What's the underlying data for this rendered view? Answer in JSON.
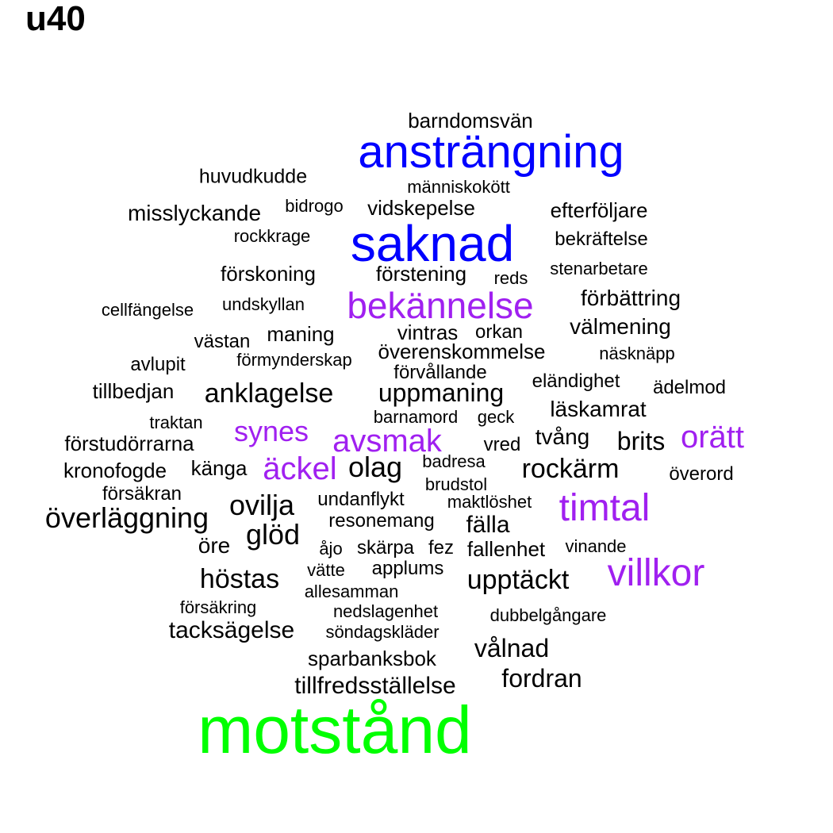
{
  "title": "u40",
  "colors": {
    "tier1": "#00ff00",
    "tier2": "#0000ff",
    "tier3": "#a020f0",
    "tier4": "#000000"
  },
  "words": [
    {
      "text": "motstånd",
      "tier": "tier1"
    },
    {
      "text": "ansträngning",
      "tier": "tier2"
    },
    {
      "text": "saknad",
      "tier": "tier2"
    },
    {
      "text": "bekännelse",
      "tier": "tier3"
    },
    {
      "text": "timtal",
      "tier": "tier3"
    },
    {
      "text": "villkor",
      "tier": "tier3"
    },
    {
      "text": "avsmak",
      "tier": "tier3"
    },
    {
      "text": "orätt",
      "tier": "tier3"
    },
    {
      "text": "äckel",
      "tier": "tier3"
    },
    {
      "text": "synes",
      "tier": "tier3"
    },
    {
      "text": "barndomsvän",
      "tier": "tier4"
    },
    {
      "text": "huvudkudde",
      "tier": "tier4"
    },
    {
      "text": "människokött",
      "tier": "tier4"
    },
    {
      "text": "bidrogo",
      "tier": "tier4"
    },
    {
      "text": "vidskepelse",
      "tier": "tier4"
    },
    {
      "text": "efterföljare",
      "tier": "tier4"
    },
    {
      "text": "misslyckande",
      "tier": "tier4"
    },
    {
      "text": "rockkrage",
      "tier": "tier4"
    },
    {
      "text": "bekräftelse",
      "tier": "tier4"
    },
    {
      "text": "stenarbetare",
      "tier": "tier4"
    },
    {
      "text": "förskoning",
      "tier": "tier4"
    },
    {
      "text": "förstening",
      "tier": "tier4"
    },
    {
      "text": "reds",
      "tier": "tier4"
    },
    {
      "text": "förbättring",
      "tier": "tier4"
    },
    {
      "text": "cellfängelse",
      "tier": "tier4"
    },
    {
      "text": "undskyllan",
      "tier": "tier4"
    },
    {
      "text": "välmening",
      "tier": "tier4"
    },
    {
      "text": "västan",
      "tier": "tier4"
    },
    {
      "text": "maning",
      "tier": "tier4"
    },
    {
      "text": "vintras",
      "tier": "tier4"
    },
    {
      "text": "orkan",
      "tier": "tier4"
    },
    {
      "text": "överenskommelse",
      "tier": "tier4"
    },
    {
      "text": "näsknäpp",
      "tier": "tier4"
    },
    {
      "text": "avlupit",
      "tier": "tier4"
    },
    {
      "text": "förmynderskap",
      "tier": "tier4"
    },
    {
      "text": "förvållande",
      "tier": "tier4"
    },
    {
      "text": "eländighet",
      "tier": "tier4"
    },
    {
      "text": "ädelmod",
      "tier": "tier4"
    },
    {
      "text": "tillbedjan",
      "tier": "tier4"
    },
    {
      "text": "anklagelse",
      "tier": "tier4"
    },
    {
      "text": "uppmaning",
      "tier": "tier4"
    },
    {
      "text": "läskamrat",
      "tier": "tier4"
    },
    {
      "text": "traktan",
      "tier": "tier4"
    },
    {
      "text": "barnamord",
      "tier": "tier4"
    },
    {
      "text": "geck",
      "tier": "tier4"
    },
    {
      "text": "förstudörrarna",
      "tier": "tier4"
    },
    {
      "text": "vred",
      "tier": "tier4"
    },
    {
      "text": "tvång",
      "tier": "tier4"
    },
    {
      "text": "brits",
      "tier": "tier4"
    },
    {
      "text": "kronofogde",
      "tier": "tier4"
    },
    {
      "text": "känga",
      "tier": "tier4"
    },
    {
      "text": "olag",
      "tier": "tier4"
    },
    {
      "text": "badresa",
      "tier": "tier4"
    },
    {
      "text": "rockärm",
      "tier": "tier4"
    },
    {
      "text": "överord",
      "tier": "tier4"
    },
    {
      "text": "brudstol",
      "tier": "tier4"
    },
    {
      "text": "försäkran",
      "tier": "tier4"
    },
    {
      "text": "undanflykt",
      "tier": "tier4"
    },
    {
      "text": "maktlöshet",
      "tier": "tier4"
    },
    {
      "text": "ovilja",
      "tier": "tier4"
    },
    {
      "text": "överläggning",
      "tier": "tier4"
    },
    {
      "text": "resonemang",
      "tier": "tier4"
    },
    {
      "text": "fälla",
      "tier": "tier4"
    },
    {
      "text": "glöd",
      "tier": "tier4"
    },
    {
      "text": "öre",
      "tier": "tier4"
    },
    {
      "text": "åjo",
      "tier": "tier4"
    },
    {
      "text": "skärpa",
      "tier": "tier4"
    },
    {
      "text": "fez",
      "tier": "tier4"
    },
    {
      "text": "fallenhet",
      "tier": "tier4"
    },
    {
      "text": "vinande",
      "tier": "tier4"
    },
    {
      "text": "vätte",
      "tier": "tier4"
    },
    {
      "text": "applums",
      "tier": "tier4"
    },
    {
      "text": "höstas",
      "tier": "tier4"
    },
    {
      "text": "upptäckt",
      "tier": "tier4"
    },
    {
      "text": "allesamman",
      "tier": "tier4"
    },
    {
      "text": "försäkring",
      "tier": "tier4"
    },
    {
      "text": "nedslagenhet",
      "tier": "tier4"
    },
    {
      "text": "dubbelgångare",
      "tier": "tier4"
    },
    {
      "text": "tacksägelse",
      "tier": "tier4"
    },
    {
      "text": "söndagskläder",
      "tier": "tier4"
    },
    {
      "text": "vålnad",
      "tier": "tier4"
    },
    {
      "text": "sparbanksbok",
      "tier": "tier4"
    },
    {
      "text": "fordran",
      "tier": "tier4"
    },
    {
      "text": "tillfredsställelse",
      "tier": "tier4"
    }
  ]
}
